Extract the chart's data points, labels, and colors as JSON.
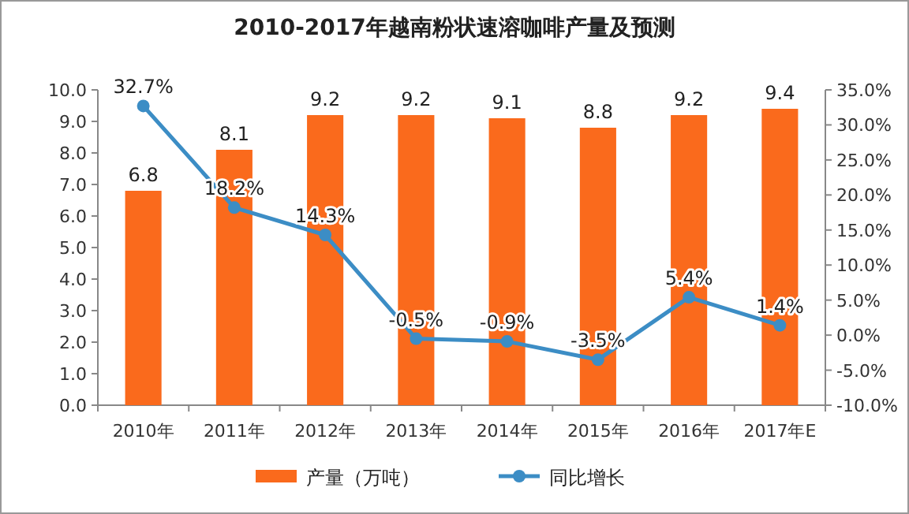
{
  "chart_data": {
    "type": "bar",
    "title": "2010-2017年越南粉状速溶咖啡产量及预测",
    "categories": [
      "2010年",
      "2011年",
      "2012年",
      "2013年",
      "2014年",
      "2015年",
      "2016年",
      "2017年E"
    ],
    "series": [
      {
        "name": "产量（万吨）",
        "color": "#fa6a1c",
        "values": [
          6.8,
          8.1,
          9.2,
          9.2,
          9.1,
          8.8,
          9.2,
          9.4
        ],
        "value_labels": [
          "6.8",
          "8.1",
          "9.2",
          "9.2",
          "9.1",
          "8.8",
          "9.2",
          "9.4"
        ]
      },
      {
        "name": "同比增长",
        "type": "line",
        "axis": "y2",
        "color": "#3c8dc5",
        "values": [
          32.7,
          18.2,
          14.3,
          -0.5,
          -0.9,
          -3.5,
          5.4,
          1.4
        ],
        "value_labels": [
          "32.7%",
          "18.2%",
          "14.3%",
          "-0.5%",
          "-0.9%",
          "-3.5%",
          "5.4%",
          "1.4%"
        ]
      }
    ],
    "ylim": [
      0,
      10
    ],
    "yticks": [
      {
        "value": 0,
        "label": "0.0"
      },
      {
        "value": 1,
        "label": "1.0"
      },
      {
        "value": 2,
        "label": "2.0"
      },
      {
        "value": 3,
        "label": "3.0"
      },
      {
        "value": 4,
        "label": "4.0"
      },
      {
        "value": 5,
        "label": "5.0"
      },
      {
        "value": 6,
        "label": "6.0"
      },
      {
        "value": 7,
        "label": "7.0"
      },
      {
        "value": 8,
        "label": "8.0"
      },
      {
        "value": 9,
        "label": "9.0"
      },
      {
        "value": 10,
        "label": "10.0"
      }
    ],
    "y2lim": [
      -10,
      35
    ],
    "y2ticks": [
      {
        "value": -10,
        "label": "-10.0%"
      },
      {
        "value": -5,
        "label": "-5.0%"
      },
      {
        "value": 0,
        "label": "0.0%"
      },
      {
        "value": 5,
        "label": "5.0%"
      },
      {
        "value": 10,
        "label": "10.0%"
      },
      {
        "value": 15,
        "label": "15.0%"
      },
      {
        "value": 20,
        "label": "20.0%"
      },
      {
        "value": 25,
        "label": "25.0%"
      },
      {
        "value": 30,
        "label": "30.0%"
      },
      {
        "value": 35,
        "label": "35.0%"
      }
    ],
    "legend": "bottom",
    "marker": "circle",
    "line_style": "solid"
  }
}
